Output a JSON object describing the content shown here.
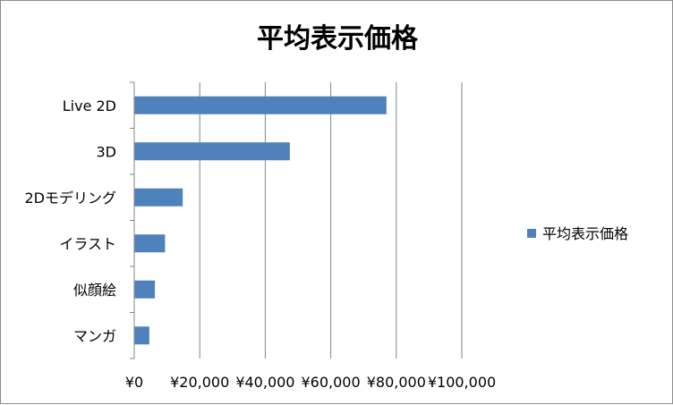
{
  "chart_data": {
    "type": "bar",
    "orientation": "horizontal",
    "title": "平均表示価格",
    "categories": [
      "Live 2D",
      "3D",
      "2Dモデリング",
      "イラスト",
      "似顔絵",
      "マンガ"
    ],
    "series": [
      {
        "name": "平均表示価格",
        "values": [
          77000,
          47500,
          14800,
          9400,
          6300,
          4600
        ],
        "color": "#4f81bd"
      }
    ],
    "x_ticks": [
      "¥0",
      "¥20,000",
      "¥40,000",
      "¥60,000",
      "¥80,000",
      "¥100,000"
    ],
    "xlim": [
      0,
      100000
    ],
    "grid": true,
    "legend_position": "right"
  }
}
